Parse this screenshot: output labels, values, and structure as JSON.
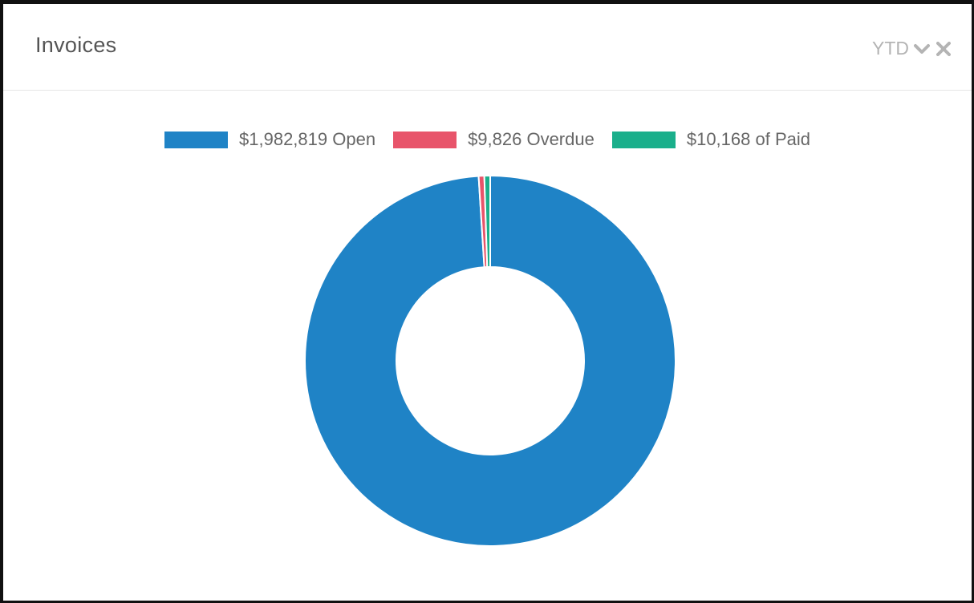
{
  "widget": {
    "title": "Invoices",
    "period_label": "YTD",
    "icons": {
      "period_dropdown": "chevron-down-icon",
      "close": "close-icon"
    }
  },
  "colors": {
    "open": "#1f83c6",
    "overdue": "#e8546a",
    "paid": "#1aaf8b",
    "header_text": "#555555",
    "control_text": "#b4b4b4",
    "legend_text": "#666666"
  },
  "legend": [
    {
      "label": "$1,982,819 Open",
      "color": "#1f83c6"
    },
    {
      "label": "$9,826 Overdue",
      "color": "#e8546a"
    },
    {
      "label": "$10,168 of Paid",
      "color": "#1aaf8b"
    }
  ],
  "chart_data": {
    "type": "pie",
    "variant": "doughnut",
    "title": "",
    "legend_position": "top",
    "categories": [
      "Open",
      "Overdue",
      "Paid"
    ],
    "values": [
      1982819,
      9826,
      10168
    ],
    "colors": [
      "#1f83c6",
      "#e8546a",
      "#1aaf8b"
    ]
  }
}
